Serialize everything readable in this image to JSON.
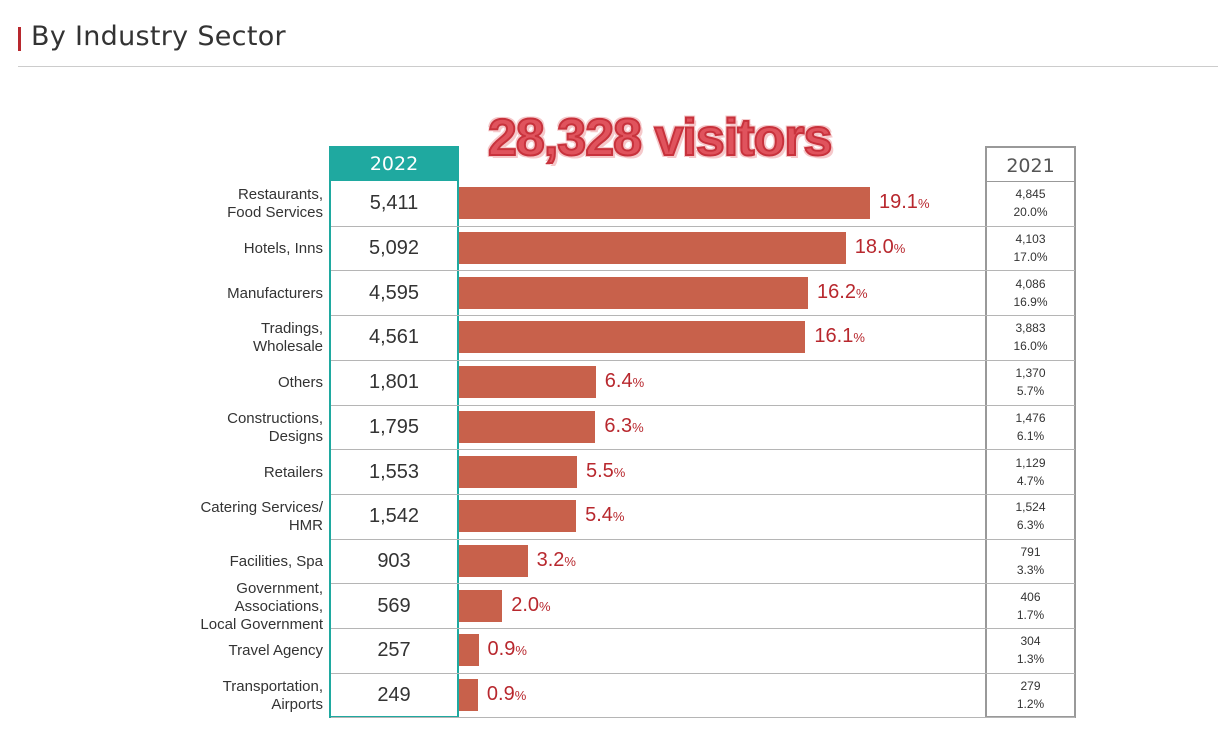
{
  "section": {
    "title": "By Industry Sector"
  },
  "total_label": "28,328 visitors",
  "col_2022_header": "2022",
  "col_2021_header": "2021",
  "colors": {
    "bar": "#c8614b",
    "teal": "#1fa9a0",
    "pct": "#b8282e",
    "accent": "#b8282e"
  },
  "chart_data": {
    "type": "bar",
    "orientation": "horizontal",
    "title": "",
    "categories": [
      "Restaurants, Food Services",
      "Hotels, Inns",
      "Manufacturers",
      "Tradings, Wholesale",
      "Others",
      "Constructions, Designs",
      "Retailers",
      "Catering Services/ HMR",
      "Facilities, Spa",
      "Government, Associations, Local Government",
      "Travel Agency",
      "Transportation, Airports"
    ],
    "label_lines": [
      [
        "Restaurants,",
        "Food Services"
      ],
      [
        "Hotels, Inns"
      ],
      [
        "Manufacturers"
      ],
      [
        "Tradings,",
        "Wholesale"
      ],
      [
        "Others"
      ],
      [
        "Constructions,",
        "Designs"
      ],
      [
        "Retailers"
      ],
      [
        "Catering Services/",
        "HMR"
      ],
      [
        "Facilities, Spa"
      ],
      [
        "Government,",
        "Associations,",
        "Local Government"
      ],
      [
        "Travel Agency"
      ],
      [
        "Transportation,",
        "Airports"
      ]
    ],
    "series": [
      {
        "name": "2022",
        "values": [
          5411,
          5092,
          4595,
          4561,
          1801,
          1795,
          1553,
          1542,
          903,
          569,
          257,
          249
        ],
        "display": [
          "5,411",
          "5,092",
          "4,595",
          "4,561",
          "1,801",
          "1,795",
          "1,553",
          "1,542",
          "903",
          "569",
          "257",
          "249"
        ],
        "percent": [
          "19.1",
          "18.0",
          "16.2",
          "16.1",
          "6.4",
          "6.3",
          "5.5",
          "5.4",
          "3.2",
          "2.0",
          "0.9",
          "0.9"
        ]
      },
      {
        "name": "2021",
        "display": [
          "4,845",
          "4,103",
          "4,086",
          "3,883",
          "1,370",
          "1,476",
          "1,129",
          "1,524",
          "791",
          "406",
          "304",
          "279"
        ],
        "percent": [
          "20.0%",
          "17.0%",
          "16.9%",
          "16.0%",
          "5.7%",
          "6.1%",
          "4.7%",
          "6.3%",
          "3.3%",
          "1.7%",
          "1.3%",
          "1.2%"
        ]
      }
    ],
    "percent_unit": "%",
    "xlim": [
      0,
      5411
    ]
  }
}
